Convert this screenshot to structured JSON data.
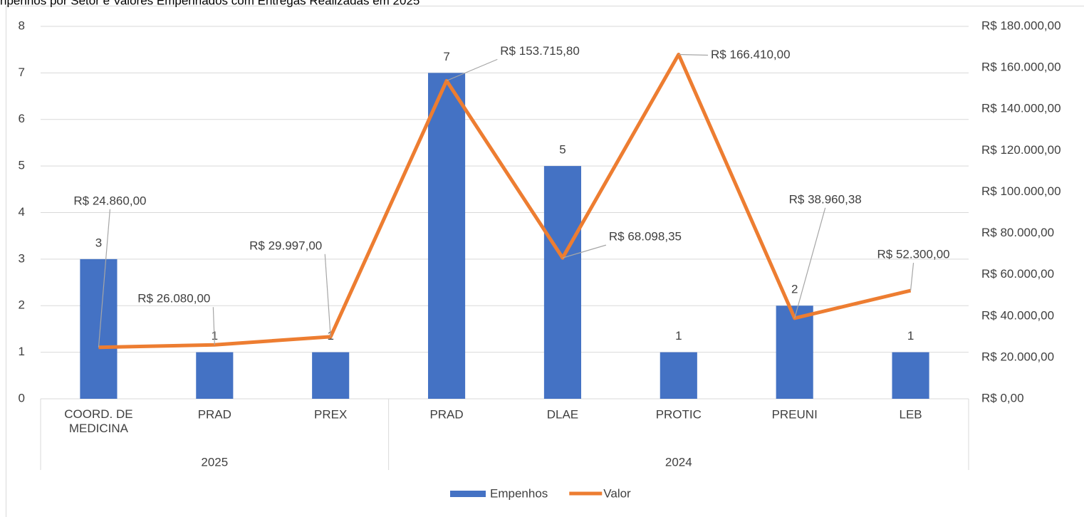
{
  "chart_data": {
    "type": "combo",
    "title": "npenhos por Setor e Valores Empenhados com Entregas Realizadas em 2025",
    "categories": [
      "COORD. DE MEDICINA",
      "PRAD",
      "PREX",
      "PRAD",
      "DLAE",
      "PROTIC",
      "PREUNI",
      "LEB"
    ],
    "category_groups": [
      "2025",
      "2025",
      "2025",
      "2024",
      "2024",
      "2024",
      "2024",
      "2024"
    ],
    "series": [
      {
        "name": "Empenhos",
        "type": "bar",
        "color": "#4472c4",
        "values": [
          3,
          1,
          1,
          7,
          5,
          1,
          2,
          1
        ]
      },
      {
        "name": "Valor",
        "type": "line",
        "axis": "y2",
        "color": "#ed7d31",
        "values": [
          24860,
          26080,
          29997,
          153715.8,
          68098.35,
          166410,
          38960.38,
          52300
        ],
        "value_labels": [
          "R$ 24.860,00",
          "R$ 26.080,00",
          "R$ 29.997,00",
          "R$ 153.715,80",
          "R$ 68.098,35",
          "R$ 166.410,00",
          "R$ 38.960,38",
          "R$ 52.300,00"
        ]
      }
    ],
    "ylim": [
      0,
      8
    ],
    "yticks": [
      0,
      1,
      2,
      3,
      4,
      5,
      6,
      7,
      8
    ],
    "y2lim": [
      0,
      180000
    ],
    "y2ticks": [
      {
        "value": 0,
        "label": "R$ 0,00"
      },
      {
        "value": 20000,
        "label": "R$ 20.000,00"
      },
      {
        "value": 40000,
        "label": "R$ 40.000,00"
      },
      {
        "value": 60000,
        "label": "R$ 60.000,00"
      },
      {
        "value": 80000,
        "label": "R$ 80.000,00"
      },
      {
        "value": 100000,
        "label": "R$ 100.000,00"
      },
      {
        "value": 120000,
        "label": "R$ 120.000,00"
      },
      {
        "value": 140000,
        "label": "R$ 140.000,00"
      },
      {
        "value": 160000,
        "label": "R$ 160.000,00"
      },
      {
        "value": 180000,
        "label": "R$ 180.000,00"
      }
    ],
    "grid": true,
    "legend": "bottom"
  }
}
